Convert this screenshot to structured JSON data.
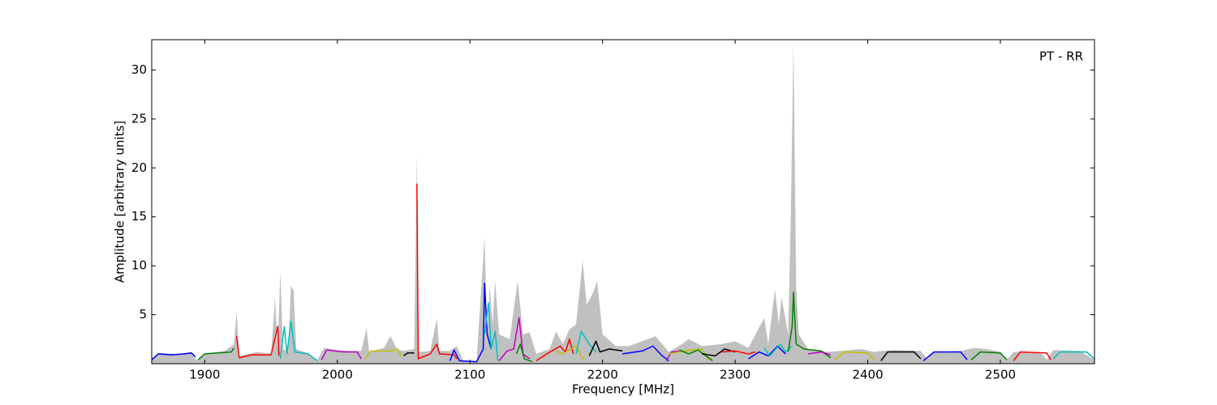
{
  "chart_data": {
    "type": "line",
    "x_label": "Frequency [MHz]",
    "y_label": "Amplitude [arbitrary units]",
    "annotation": "PT - RR",
    "xlim": [
      1860,
      2571
    ],
    "ylim": [
      0,
      33.1
    ],
    "xticks": [
      1900,
      2000,
      2100,
      2200,
      2300,
      2400,
      2500
    ],
    "yticks": [
      5,
      10,
      15,
      20,
      25,
      30
    ],
    "series": [
      {
        "color": "#c0c0c0",
        "fill": true,
        "x": [
          1860,
          1865,
          1880,
          1890,
          1893,
          1895,
          1900,
          1915,
          1922,
          1924,
          1926,
          1940,
          1950,
          1953,
          1955,
          1957,
          1959,
          1963,
          1965,
          1967,
          1969,
          1975,
          1985,
          1990,
          2000,
          2010,
          2018,
          2022,
          2024,
          2035,
          2040,
          2045,
          2050,
          2058,
          2060,
          2061,
          2070,
          2075,
          2077,
          2085,
          2090,
          2095,
          2105,
          2111,
          2113,
          2115,
          2117,
          2119,
          2122,
          2130,
          2136,
          2140,
          2145,
          2150,
          2160,
          2165,
          2170,
          2175,
          2180,
          2185,
          2188,
          2192,
          2196,
          2200,
          2210,
          2220,
          2240,
          2250,
          2260,
          2265,
          2275,
          2290,
          2300,
          2310,
          2322,
          2325,
          2330,
          2333,
          2335,
          2340,
          2342,
          2344,
          2346,
          2348,
          2355,
          2370,
          2380,
          2395,
          2405,
          2410,
          2420,
          2440,
          2445,
          2450,
          2470,
          2480,
          2490,
          2500,
          2505,
          2510,
          2530,
          2535,
          2540,
          2560,
          2571
        ],
        "values": [
          0.5,
          1.1,
          1.0,
          1.2,
          0.5,
          0.3,
          1.0,
          1.3,
          2.0,
          5.3,
          0.8,
          1.2,
          1.0,
          6.8,
          1.5,
          9.4,
          1.5,
          1.2,
          8.0,
          7.5,
          1.5,
          1.2,
          0.4,
          1.6,
          1.4,
          1.3,
          1.3,
          3.6,
          1.2,
          1.6,
          2.8,
          1.5,
          1.3,
          1.5,
          21.5,
          1.2,
          1.3,
          4.6,
          1.3,
          1.3,
          1.8,
          0.3,
          0.3,
          12.9,
          3,
          8.0,
          4,
          8.5,
          3,
          2.5,
          8.5,
          3,
          3.2,
          1,
          1.5,
          3.3,
          2,
          3.5,
          4,
          10.5,
          6,
          7,
          8.4,
          3,
          1.8,
          1.8,
          2.8,
          1.2,
          2,
          2.5,
          1.8,
          2.0,
          2.3,
          1.6,
          4.7,
          2,
          7.6,
          4,
          6.8,
          3,
          15.2,
          33,
          8,
          3,
          1.5,
          1.2,
          1.3,
          1.5,
          1.2,
          1.3,
          1.4,
          1.3,
          0.5,
          1.2,
          1.3,
          1.6,
          1.5,
          1.2,
          0.4,
          1.2,
          1.2,
          0.4,
          1.4,
          1.3,
          0.4
        ]
      },
      {
        "color": "#0000ff",
        "x": [
          1860,
          1865,
          1875,
          1885,
          1890,
          1893
        ],
        "values": [
          0.4,
          1.0,
          0.9,
          1.0,
          1.1,
          0.7
        ]
      },
      {
        "color": "#008000",
        "x": [
          1895,
          1900,
          1910,
          1920,
          1922
        ],
        "values": [
          0.4,
          1.0,
          1.1,
          1.2,
          1.6
        ]
      },
      {
        "color": "#ff0000",
        "x": [
          1924,
          1926,
          1935,
          1945,
          1950,
          1955,
          1956
        ],
        "values": [
          2.8,
          0.6,
          0.9,
          0.9,
          0.9,
          3.8,
          0.8
        ]
      },
      {
        "color": "#00bfbf",
        "x": [
          1957,
          1960,
          1962,
          1965,
          1968,
          1978,
          1985
        ],
        "values": [
          0.5,
          3.8,
          1.0,
          4.3,
          1.2,
          1.0,
          0.3
        ]
      },
      {
        "color": "#bf00bf",
        "x": [
          1988,
          1992,
          2005,
          2015,
          2018
        ],
        "values": [
          0.4,
          1.4,
          1.2,
          1.2,
          0.5
        ]
      },
      {
        "color": "#bfbf00",
        "x": [
          2021,
          2025,
          2040,
          2045,
          2048
        ],
        "values": [
          0.5,
          1.3,
          1.3,
          1.5,
          0.8
        ]
      },
      {
        "color": "#000000",
        "x": [
          2050,
          2053,
          2058
        ],
        "values": [
          0.8,
          1.1,
          1.1
        ]
      },
      {
        "color": "#ff0000",
        "x": [
          2060,
          2061,
          2070,
          2075,
          2077,
          2088,
          2090
        ],
        "values": [
          18.4,
          0.5,
          1.0,
          2.0,
          1.0,
          0.9,
          0.5
        ]
      },
      {
        "color": "#0000ff",
        "x": [
          2085,
          2088,
          2092,
          2105,
          2110,
          2111,
          2113,
          2116
        ],
        "values": [
          0.3,
          1.4,
          0.3,
          0.2,
          1.5,
          8.2,
          3,
          1.5
        ]
      },
      {
        "color": "#00bfbf",
        "x": [
          2111,
          2114,
          2116,
          2119,
          2121
        ],
        "values": [
          3,
          6.2,
          1.5,
          3.3,
          0.3
        ]
      },
      {
        "color": "#bf00bf",
        "x": [
          2122,
          2128,
          2133,
          2137,
          2140,
          2145
        ],
        "values": [
          0.3,
          1.3,
          1.5,
          4.7,
          1.0,
          0.5
        ]
      },
      {
        "color": "#008000",
        "x": [
          2135,
          2138,
          2141,
          2147
        ],
        "values": [
          1.0,
          2.0,
          0.5,
          0.2
        ]
      },
      {
        "color": "#ff0000",
        "x": [
          2150,
          2158,
          2168,
          2172,
          2175,
          2178
        ],
        "values": [
          0.3,
          1.0,
          1.8,
          1.2,
          2.5,
          1.0
        ]
      },
      {
        "color": "#bfbf00",
        "x": [
          2165,
          2170,
          2180,
          2183,
          2186
        ],
        "values": [
          1.3,
          1.0,
          1.8,
          1.0,
          0.4
        ]
      },
      {
        "color": "#00bfbf",
        "x": [
          2180,
          2184,
          2190,
          2195
        ],
        "values": [
          1.0,
          3.3,
          2,
          1.2
        ]
      },
      {
        "color": "#000000",
        "x": [
          2190,
          2195,
          2198,
          2205,
          2215
        ],
        "values": [
          0.8,
          2.3,
          1.2,
          1.5,
          1.3
        ]
      },
      {
        "color": "#0000ff",
        "x": [
          2215,
          2230,
          2238,
          2245,
          2250
        ],
        "values": [
          1.0,
          1.3,
          1.8,
          0.8,
          0.3
        ]
      },
      {
        "color": "#bf00bf",
        "x": [
          2248,
          2252,
          2260
        ],
        "values": [
          0.3,
          1.2,
          1.3
        ]
      },
      {
        "color": "#bfbf00",
        "x": [
          2250,
          2262,
          2275,
          2280
        ],
        "values": [
          1.0,
          1.3,
          1.5,
          0.4
        ]
      },
      {
        "color": "#008000",
        "x": [
          2258,
          2265,
          2272,
          2283
        ],
        "values": [
          1.4,
          1.0,
          1.4,
          0.3
        ]
      },
      {
        "color": "#000000",
        "x": [
          2275,
          2285,
          2292,
          2300
        ],
        "values": [
          1.0,
          0.8,
          1.5,
          1.2
        ]
      },
      {
        "color": "#ff0000",
        "x": [
          2290,
          2300,
          2310,
          2315
        ],
        "values": [
          1.2,
          1.3,
          1.0,
          1.2
        ]
      },
      {
        "color": "#0000ff",
        "x": [
          2310,
          2318,
          2325,
          2332,
          2338
        ],
        "values": [
          0.5,
          1.2,
          0.8,
          1.8,
          1.0
        ]
      },
      {
        "color": "#00bfbf",
        "x": [
          2322,
          2326,
          2334,
          2338,
          2343
        ],
        "values": [
          1.6,
          0.8,
          2.0,
          1.2,
          1.8
        ]
      },
      {
        "color": "#008000",
        "x": [
          2340,
          2343,
          2344,
          2346,
          2352,
          2365,
          2372
        ],
        "values": [
          1.2,
          3.8,
          7.3,
          2,
          1.5,
          1.3,
          0.6
        ]
      },
      {
        "color": "#bf00bf",
        "x": [
          2355,
          2365,
          2372
        ],
        "values": [
          1.0,
          1.2,
          0.9
        ]
      },
      {
        "color": "#bfbf00",
        "x": [
          2375,
          2382,
          2400,
          2405
        ],
        "values": [
          0.4,
          1.2,
          1.1,
          0.3
        ]
      },
      {
        "color": "#000000",
        "x": [
          2410,
          2415,
          2435,
          2440
        ],
        "values": [
          0.3,
          1.2,
          1.2,
          0.5
        ]
      },
      {
        "color": "#0000ff",
        "x": [
          2442,
          2450,
          2470,
          2475
        ],
        "values": [
          0.3,
          1.2,
          1.2,
          0.4
        ]
      },
      {
        "color": "#008000",
        "x": [
          2478,
          2485,
          2500,
          2505
        ],
        "values": [
          0.4,
          1.2,
          1.1,
          0.4
        ]
      },
      {
        "color": "#ff0000",
        "x": [
          2510,
          2515,
          2535,
          2538
        ],
        "values": [
          0.3,
          1.2,
          1.1,
          0.4
        ]
      },
      {
        "color": "#00bfbf",
        "x": [
          2540,
          2545,
          2565,
          2571
        ],
        "values": [
          0.5,
          1.2,
          1.2,
          0.5
        ]
      }
    ]
  }
}
